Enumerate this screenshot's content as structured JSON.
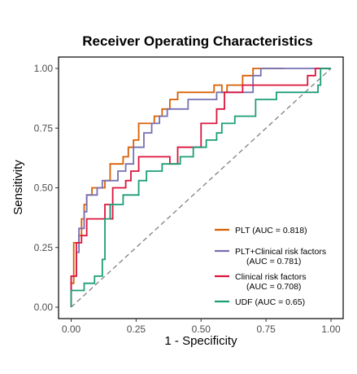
{
  "chart_data": {
    "type": "line",
    "title": "Receiver Operating Characteristics",
    "xlabel": "1 - Specificity",
    "ylabel": "Sensitivity",
    "xlim": [
      0,
      1
    ],
    "ylim": [
      0,
      1
    ],
    "x_ticks": [
      "0.00",
      "0.25",
      "0.50",
      "0.75",
      "1.00"
    ],
    "y_ticks": [
      "0.00",
      "0.25",
      "0.50",
      "0.75",
      "1.00"
    ],
    "grid": false,
    "legend_position": "bottom-right",
    "reference_line": {
      "from": [
        0,
        0
      ],
      "to": [
        1,
        1
      ],
      "style": "dashed",
      "color": "#808080"
    },
    "series": [
      {
        "name": "PLT (AUC = 0.818)",
        "name_lines": [
          "PLT (AUC = 0.818)"
        ],
        "color": "#d95f02",
        "points": [
          [
            0,
            0
          ],
          [
            0,
            0.1
          ],
          [
            0.01,
            0.1
          ],
          [
            0.01,
            0.27
          ],
          [
            0.03,
            0.27
          ],
          [
            0.03,
            0.3
          ],
          [
            0.04,
            0.3
          ],
          [
            0.04,
            0.37
          ],
          [
            0.05,
            0.37
          ],
          [
            0.05,
            0.43
          ],
          [
            0.06,
            0.43
          ],
          [
            0.06,
            0.47
          ],
          [
            0.08,
            0.47
          ],
          [
            0.08,
            0.5
          ],
          [
            0.13,
            0.5
          ],
          [
            0.13,
            0.53
          ],
          [
            0.15,
            0.53
          ],
          [
            0.15,
            0.6
          ],
          [
            0.2,
            0.6
          ],
          [
            0.2,
            0.63
          ],
          [
            0.22,
            0.63
          ],
          [
            0.22,
            0.67
          ],
          [
            0.24,
            0.67
          ],
          [
            0.24,
            0.7
          ],
          [
            0.26,
            0.7
          ],
          [
            0.26,
            0.77
          ],
          [
            0.32,
            0.77
          ],
          [
            0.32,
            0.8
          ],
          [
            0.35,
            0.8
          ],
          [
            0.35,
            0.83
          ],
          [
            0.38,
            0.83
          ],
          [
            0.38,
            0.87
          ],
          [
            0.41,
            0.87
          ],
          [
            0.41,
            0.9
          ],
          [
            0.55,
            0.9
          ],
          [
            0.55,
            0.93
          ],
          [
            0.58,
            0.93
          ],
          [
            0.58,
            0.9
          ],
          [
            0.6,
            0.9
          ],
          [
            0.6,
            0.93
          ],
          [
            0.66,
            0.93
          ],
          [
            0.66,
            0.97
          ],
          [
            0.7,
            0.97
          ],
          [
            0.7,
            1
          ],
          [
            0.82,
            1
          ]
        ]
      },
      {
        "name": "PLT+Clinical risk factors (AUC = 0.781)",
        "name_lines": [
          "PLT+Clinical risk factors",
          "(AUC = 0.781)"
        ],
        "color": "#7570b3",
        "points": [
          [
            0,
            0
          ],
          [
            0,
            0.13
          ],
          [
            0.02,
            0.13
          ],
          [
            0.02,
            0.23
          ],
          [
            0.03,
            0.23
          ],
          [
            0.03,
            0.33
          ],
          [
            0.05,
            0.33
          ],
          [
            0.05,
            0.4
          ],
          [
            0.06,
            0.4
          ],
          [
            0.06,
            0.47
          ],
          [
            0.1,
            0.47
          ],
          [
            0.1,
            0.5
          ],
          [
            0.12,
            0.5
          ],
          [
            0.12,
            0.53
          ],
          [
            0.18,
            0.53
          ],
          [
            0.18,
            0.57
          ],
          [
            0.21,
            0.57
          ],
          [
            0.21,
            0.6
          ],
          [
            0.24,
            0.6
          ],
          [
            0.24,
            0.67
          ],
          [
            0.28,
            0.67
          ],
          [
            0.28,
            0.73
          ],
          [
            0.31,
            0.73
          ],
          [
            0.31,
            0.77
          ],
          [
            0.34,
            0.77
          ],
          [
            0.34,
            0.8
          ],
          [
            0.37,
            0.8
          ],
          [
            0.37,
            0.83
          ],
          [
            0.45,
            0.83
          ],
          [
            0.45,
            0.87
          ],
          [
            0.56,
            0.87
          ],
          [
            0.56,
            0.9
          ],
          [
            0.7,
            0.9
          ],
          [
            0.7,
            0.97
          ],
          [
            0.73,
            0.97
          ],
          [
            0.73,
            1
          ],
          [
            1,
            1
          ]
        ]
      },
      {
        "name": "Clinical risk factors (AUC = 0.708)",
        "name_lines": [
          "Clinical risk factors",
          "(AUC = 0.708)"
        ],
        "color": "#dc143c",
        "points": [
          [
            0,
            0
          ],
          [
            0,
            0.13
          ],
          [
            0.02,
            0.13
          ],
          [
            0.02,
            0.27
          ],
          [
            0.04,
            0.27
          ],
          [
            0.04,
            0.3
          ],
          [
            0.06,
            0.3
          ],
          [
            0.06,
            0.37
          ],
          [
            0.13,
            0.37
          ],
          [
            0.13,
            0.43
          ],
          [
            0.15,
            0.43
          ],
          [
            0.15,
            0.37
          ],
          [
            0.16,
            0.37
          ],
          [
            0.16,
            0.5
          ],
          [
            0.21,
            0.5
          ],
          [
            0.21,
            0.53
          ],
          [
            0.23,
            0.53
          ],
          [
            0.23,
            0.57
          ],
          [
            0.26,
            0.57
          ],
          [
            0.26,
            0.63
          ],
          [
            0.38,
            0.63
          ],
          [
            0.38,
            0.6
          ],
          [
            0.41,
            0.6
          ],
          [
            0.41,
            0.67
          ],
          [
            0.5,
            0.67
          ],
          [
            0.5,
            0.77
          ],
          [
            0.56,
            0.77
          ],
          [
            0.56,
            0.83
          ],
          [
            0.59,
            0.83
          ],
          [
            0.59,
            0.9
          ],
          [
            0.66,
            0.9
          ],
          [
            0.66,
            0.93
          ],
          [
            0.91,
            0.93
          ],
          [
            0.91,
            0.97
          ],
          [
            0.94,
            0.97
          ],
          [
            0.94,
            1
          ],
          [
            1,
            1
          ]
        ]
      },
      {
        "name": "UDF (AUC = 0.65)",
        "name_lines": [
          "UDF (AUC = 0.65)"
        ],
        "color": "#1b9e77",
        "points": [
          [
            0,
            0
          ],
          [
            0,
            0.07
          ],
          [
            0.05,
            0.07
          ],
          [
            0.05,
            0.1
          ],
          [
            0.09,
            0.1
          ],
          [
            0.09,
            0.13
          ],
          [
            0.12,
            0.13
          ],
          [
            0.12,
            0.2
          ],
          [
            0.13,
            0.2
          ],
          [
            0.13,
            0.37
          ],
          [
            0.15,
            0.37
          ],
          [
            0.15,
            0.43
          ],
          [
            0.2,
            0.43
          ],
          [
            0.2,
            0.47
          ],
          [
            0.26,
            0.47
          ],
          [
            0.26,
            0.53
          ],
          [
            0.29,
            0.53
          ],
          [
            0.29,
            0.57
          ],
          [
            0.35,
            0.57
          ],
          [
            0.35,
            0.6
          ],
          [
            0.42,
            0.6
          ],
          [
            0.42,
            0.63
          ],
          [
            0.47,
            0.63
          ],
          [
            0.47,
            0.67
          ],
          [
            0.52,
            0.67
          ],
          [
            0.52,
            0.7
          ],
          [
            0.56,
            0.7
          ],
          [
            0.56,
            0.73
          ],
          [
            0.58,
            0.73
          ],
          [
            0.58,
            0.77
          ],
          [
            0.63,
            0.77
          ],
          [
            0.63,
            0.8
          ],
          [
            0.71,
            0.8
          ],
          [
            0.71,
            0.87
          ],
          [
            0.79,
            0.87
          ],
          [
            0.79,
            0.9
          ],
          [
            0.95,
            0.9
          ],
          [
            0.95,
            0.93
          ],
          [
            0.96,
            0.93
          ],
          [
            0.96,
            1
          ],
          [
            1,
            1
          ]
        ]
      }
    ]
  }
}
